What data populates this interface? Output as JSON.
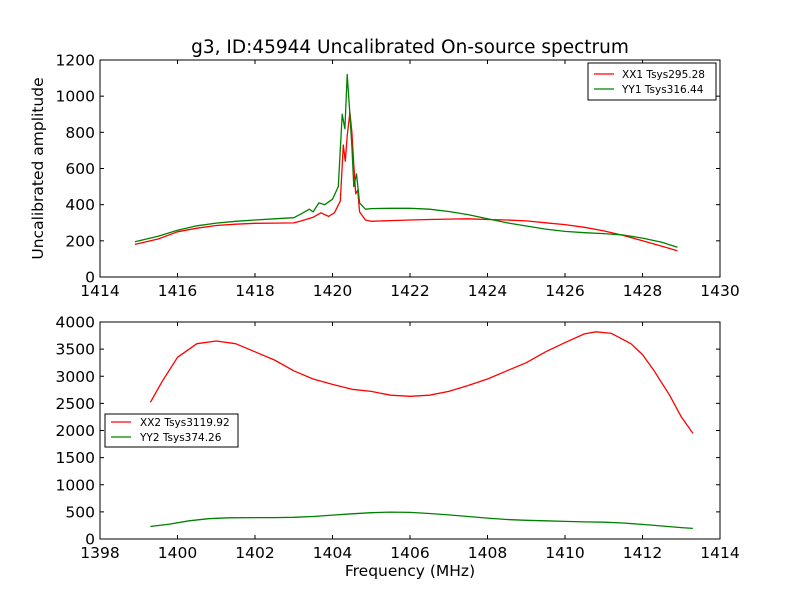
{
  "title": "g3, ID:45944 Uncalibrated On-source spectrum",
  "colors": {
    "red": "#ff0000",
    "green": "#008000"
  },
  "chart_data": [
    {
      "type": "line",
      "ylabel": "Uncalibrated amplitude",
      "xlabel": "",
      "xlim": [
        1414,
        1430
      ],
      "ylim": [
        0,
        1200
      ],
      "xticks": [
        1414,
        1416,
        1418,
        1420,
        1422,
        1424,
        1426,
        1428,
        1430
      ],
      "yticks": [
        0,
        200,
        400,
        600,
        800,
        1000,
        1200
      ],
      "legend_position": "upper right",
      "series": [
        {
          "name": "XX1 Tsys295.28",
          "color": "#ff0000",
          "points": [
            [
              1414.9,
              180
            ],
            [
              1415.5,
              210
            ],
            [
              1416,
              250
            ],
            [
              1416.5,
              270
            ],
            [
              1417,
              285
            ],
            [
              1417.5,
              292
            ],
            [
              1418,
              297
            ],
            [
              1418.5,
              298
            ],
            [
              1419,
              299
            ],
            [
              1419.2,
              310
            ],
            [
              1419.5,
              330
            ],
            [
              1419.7,
              355
            ],
            [
              1419.9,
              335
            ],
            [
              1420.05,
              355
            ],
            [
              1420.2,
              420
            ],
            [
              1420.28,
              730
            ],
            [
              1420.33,
              640
            ],
            [
              1420.38,
              780
            ],
            [
              1420.45,
              910
            ],
            [
              1420.5,
              800
            ],
            [
              1420.55,
              620
            ],
            [
              1420.6,
              460
            ],
            [
              1420.65,
              480
            ],
            [
              1420.7,
              360
            ],
            [
              1420.85,
              315
            ],
            [
              1421,
              308
            ],
            [
              1421.5,
              312
            ],
            [
              1422,
              315
            ],
            [
              1422.5,
              318
            ],
            [
              1423,
              320
            ],
            [
              1423.5,
              322
            ],
            [
              1424,
              318
            ],
            [
              1424.5,
              315
            ],
            [
              1425,
              310
            ],
            [
              1425.5,
              300
            ],
            [
              1426,
              290
            ],
            [
              1426.5,
              275
            ],
            [
              1427,
              255
            ],
            [
              1427.5,
              230
            ],
            [
              1428,
              200
            ],
            [
              1428.5,
              170
            ],
            [
              1428.9,
              145
            ]
          ]
        },
        {
          "name": "YY1 Tsys316.44",
          "color": "#008000",
          "points": [
            [
              1414.9,
              195
            ],
            [
              1415.5,
              225
            ],
            [
              1416,
              258
            ],
            [
              1416.5,
              283
            ],
            [
              1417,
              298
            ],
            [
              1417.5,
              308
            ],
            [
              1418,
              315
            ],
            [
              1418.5,
              322
            ],
            [
              1419,
              328
            ],
            [
              1419.2,
              350
            ],
            [
              1419.4,
              375
            ],
            [
              1419.5,
              360
            ],
            [
              1419.65,
              410
            ],
            [
              1419.8,
              400
            ],
            [
              1420,
              430
            ],
            [
              1420.15,
              500
            ],
            [
              1420.25,
              900
            ],
            [
              1420.32,
              820
            ],
            [
              1420.38,
              1120
            ],
            [
              1420.45,
              900
            ],
            [
              1420.5,
              720
            ],
            [
              1420.55,
              500
            ],
            [
              1420.62,
              570
            ],
            [
              1420.7,
              410
            ],
            [
              1420.85,
              375
            ],
            [
              1421,
              378
            ],
            [
              1421.5,
              380
            ],
            [
              1422,
              380
            ],
            [
              1422.5,
              375
            ],
            [
              1423,
              362
            ],
            [
              1423.5,
              345
            ],
            [
              1424,
              322
            ],
            [
              1424.5,
              300
            ],
            [
              1425,
              282
            ],
            [
              1425.5,
              265
            ],
            [
              1426,
              252
            ],
            [
              1426.5,
              245
            ],
            [
              1427,
              240
            ],
            [
              1427.5,
              232
            ],
            [
              1428,
              215
            ],
            [
              1428.5,
              192
            ],
            [
              1428.9,
              165
            ]
          ]
        }
      ]
    },
    {
      "type": "line",
      "ylabel": "",
      "xlabel": "Frequency (MHz)",
      "xlim": [
        1398,
        1414
      ],
      "ylim": [
        0,
        4000
      ],
      "xticks": [
        1398,
        1400,
        1402,
        1404,
        1406,
        1408,
        1410,
        1412,
        1414
      ],
      "yticks": [
        0,
        500,
        1000,
        1500,
        2000,
        2500,
        3000,
        3500,
        4000
      ],
      "legend_position": "center left",
      "series": [
        {
          "name": "XX2 Tsys3119.92",
          "color": "#ff0000",
          "points": [
            [
              1399.3,
              2520
            ],
            [
              1399.6,
              2900
            ],
            [
              1400,
              3350
            ],
            [
              1400.5,
              3600
            ],
            [
              1401,
              3650
            ],
            [
              1401.5,
              3600
            ],
            [
              1402,
              3450
            ],
            [
              1402.5,
              3300
            ],
            [
              1403,
              3100
            ],
            [
              1403.5,
              2950
            ],
            [
              1404,
              2850
            ],
            [
              1404.5,
              2760
            ],
            [
              1405,
              2720
            ],
            [
              1405.5,
              2650
            ],
            [
              1406,
              2630
            ],
            [
              1406.5,
              2650
            ],
            [
              1407,
              2720
            ],
            [
              1407.5,
              2830
            ],
            [
              1408,
              2950
            ],
            [
              1408.5,
              3100
            ],
            [
              1409,
              3250
            ],
            [
              1409.5,
              3450
            ],
            [
              1410,
              3620
            ],
            [
              1410.5,
              3780
            ],
            [
              1410.8,
              3820
            ],
            [
              1411.2,
              3790
            ],
            [
              1411.7,
              3600
            ],
            [
              1412,
              3400
            ],
            [
              1412.3,
              3100
            ],
            [
              1412.7,
              2650
            ],
            [
              1413,
              2250
            ],
            [
              1413.3,
              1950
            ]
          ]
        },
        {
          "name": "YY2 Tsys374.26",
          "color": "#008000",
          "points": [
            [
              1399.3,
              230
            ],
            [
              1399.8,
              275
            ],
            [
              1400.3,
              335
            ],
            [
              1400.8,
              375
            ],
            [
              1401.3,
              390
            ],
            [
              1402,
              395
            ],
            [
              1402.5,
              395
            ],
            [
              1403,
              400
            ],
            [
              1403.5,
              415
            ],
            [
              1404,
              440
            ],
            [
              1404.5,
              465
            ],
            [
              1405,
              485
            ],
            [
              1405.5,
              495
            ],
            [
              1406,
              490
            ],
            [
              1406.5,
              470
            ],
            [
              1407,
              445
            ],
            [
              1407.5,
              415
            ],
            [
              1408,
              385
            ],
            [
              1408.5,
              360
            ],
            [
              1409,
              345
            ],
            [
              1409.5,
              335
            ],
            [
              1410,
              325
            ],
            [
              1410.5,
              315
            ],
            [
              1411,
              310
            ],
            [
              1411.5,
              295
            ],
            [
              1412,
              270
            ],
            [
              1412.5,
              240
            ],
            [
              1413,
              210
            ],
            [
              1413.3,
              195
            ]
          ]
        }
      ]
    }
  ]
}
